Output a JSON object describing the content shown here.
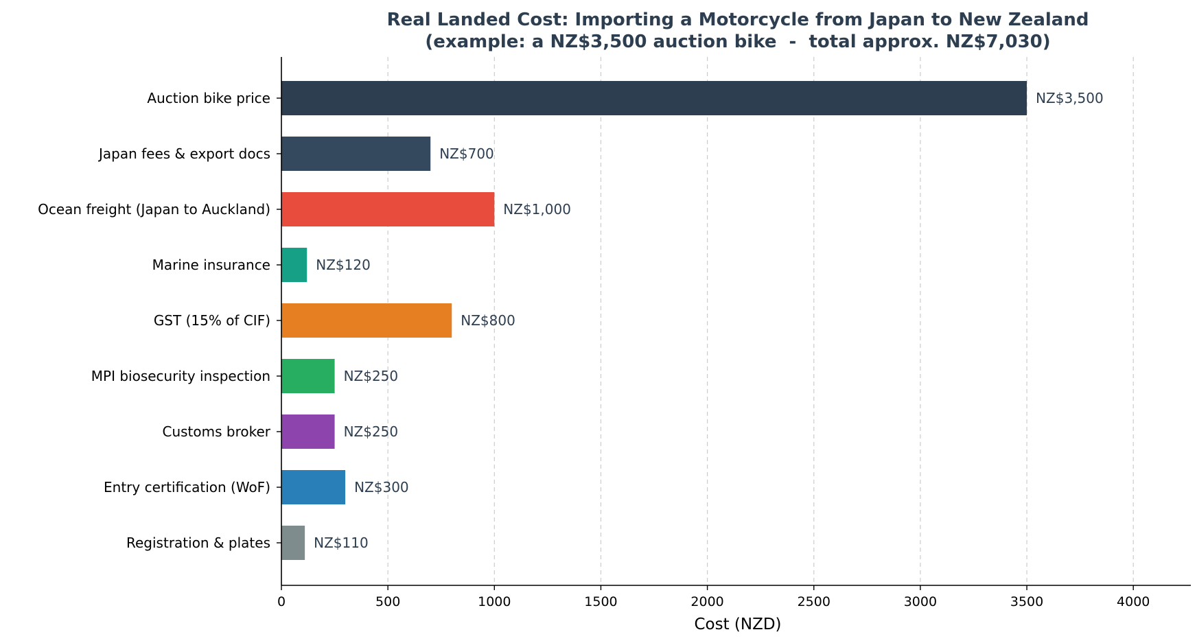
{
  "chart_data": {
    "type": "bar",
    "orientation": "horizontal",
    "title": "Real Landed Cost: Importing a Motorcycle from Japan to New Zealand",
    "subtitle": "(example: a NZ$3,500 auction bike  -  total approx. NZ$7,030)",
    "xlabel": "Cost (NZD)",
    "ylabel": "",
    "xlim": [
      0,
      4270
    ],
    "xticks": [
      0,
      500,
      1000,
      1500,
      2000,
      2500,
      3000,
      3500,
      4000
    ],
    "grid": "x-dashed",
    "categories": [
      "Auction bike price",
      "Japan fees & export docs",
      "Ocean freight (Japan to Auckland)",
      "Marine insurance",
      "GST (15% of CIF)",
      "MPI biosecurity inspection",
      "Customs broker",
      "Entry certification (WoF)",
      "Registration & plates"
    ],
    "values": [
      3500,
      700,
      1000,
      120,
      800,
      250,
      250,
      300,
      110
    ],
    "value_labels": [
      "NZ$3,500",
      "NZ$700",
      "NZ$1,000",
      "NZ$120",
      "NZ$800",
      "NZ$250",
      "NZ$250",
      "NZ$300",
      "NZ$110"
    ],
    "colors": [
      "#2c3e50",
      "#34495e",
      "#e74c3c",
      "#16a085",
      "#e67e22",
      "#27ae60",
      "#8e44ad",
      "#2980b9",
      "#7f8c8d"
    ]
  }
}
